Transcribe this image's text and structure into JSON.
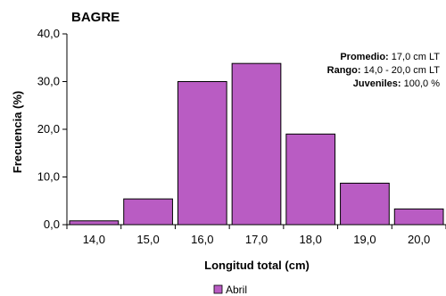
{
  "chart_data": {
    "type": "bar",
    "title": "BAGRE",
    "xlabel": "Longitud total (cm)",
    "ylabel": "Frecuencia (%)",
    "categories": [
      "14,0",
      "15,0",
      "16,0",
      "17,0",
      "18,0",
      "19,0",
      "20,0"
    ],
    "series": [
      {
        "name": "Abril",
        "values": [
          0.8,
          5.4,
          30.0,
          33.8,
          19.0,
          8.7,
          3.3
        ]
      }
    ],
    "ylim": [
      0,
      40
    ],
    "yticks": [
      "0,0",
      "10,0",
      "20,0",
      "30,0",
      "40,0"
    ],
    "legend_position": "bottom",
    "grid": false,
    "bar_color": "#b95cc3",
    "annotations": [
      {
        "label": "Promedio:",
        "value": "17,0 cm LT"
      },
      {
        "label": "Rango:",
        "value": "14,0 - 20,0 cm LT"
      },
      {
        "label": "Juveniles:",
        "value": "100,0 %"
      }
    ]
  }
}
